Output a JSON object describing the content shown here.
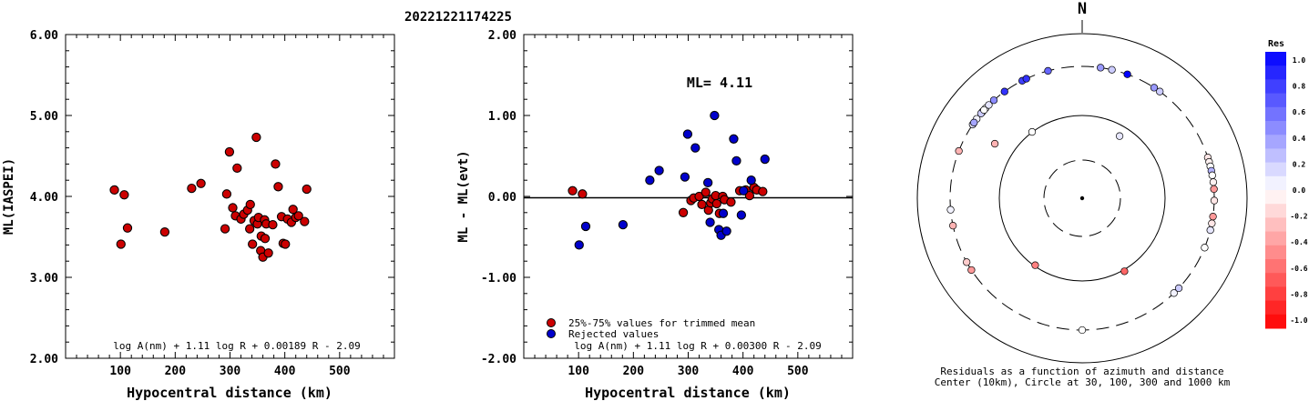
{
  "page_title": "20221221174225",
  "chart_data": [
    {
      "type": "scatter",
      "id": "left",
      "title": "",
      "xlabel": "Hypocentral distance (km)",
      "ylabel": "ML(IASPEI)",
      "xlim": [
        0,
        600
      ],
      "ylim": [
        2.0,
        6.0
      ],
      "xticks": [
        100,
        200,
        300,
        400,
        500
      ],
      "yticks": [
        "2.00",
        "3.00",
        "4.00",
        "5.00",
        "6.00"
      ],
      "formula": "log A(nm) + 1.11 log R + 0.00189 R - 2.09",
      "point_color": "#cc0000",
      "points": [
        [
          89,
          4.08
        ],
        [
          101,
          3.41
        ],
        [
          107,
          4.02
        ],
        [
          113,
          3.61
        ],
        [
          181,
          3.56
        ],
        [
          230,
          4.1
        ],
        [
          247,
          4.16
        ],
        [
          291,
          3.6
        ],
        [
          294,
          4.03
        ],
        [
          299,
          4.55
        ],
        [
          305,
          3.86
        ],
        [
          310,
          3.76
        ],
        [
          313,
          4.35
        ],
        [
          320,
          3.72
        ],
        [
          325,
          3.78
        ],
        [
          332,
          3.83
        ],
        [
          337,
          3.9
        ],
        [
          336,
          3.6
        ],
        [
          341,
          3.41
        ],
        [
          344,
          3.7
        ],
        [
          348,
          4.73
        ],
        [
          350,
          3.66
        ],
        [
          352,
          3.74
        ],
        [
          356,
          3.33
        ],
        [
          357,
          3.51
        ],
        [
          360,
          3.25
        ],
        [
          363,
          3.71
        ],
        [
          364,
          3.48
        ],
        [
          366,
          3.66
        ],
        [
          370,
          3.3
        ],
        [
          378,
          3.65
        ],
        [
          383,
          4.4
        ],
        [
          388,
          4.12
        ],
        [
          394,
          3.75
        ],
        [
          397,
          3.42
        ],
        [
          401,
          3.41
        ],
        [
          405,
          3.72
        ],
        [
          412,
          3.68
        ],
        [
          415,
          3.84
        ],
        [
          420,
          3.74
        ],
        [
          425,
          3.76
        ],
        [
          436,
          3.69
        ],
        [
          440,
          4.09
        ]
      ]
    },
    {
      "type": "scatter",
      "id": "middle",
      "title": "",
      "xlabel": "Hypocentral distance (km)",
      "ylabel": "ML - ML(evt)",
      "xlim": [
        0,
        600
      ],
      "ylim": [
        -2.0,
        2.0
      ],
      "xticks": [
        100,
        200,
        300,
        400,
        500
      ],
      "yticks": [
        "-2.00",
        "-1.00",
        "0.00",
        "1.00",
        "2.00"
      ],
      "reference_line": 0.0,
      "ml_label": "ML= 4.11",
      "legend": {
        "position": "bottom-left",
        "entries": [
          {
            "label": "25%-75% values for trimmed mean",
            "color": "#cc0000"
          },
          {
            "label": "Rejected values",
            "color": "#0000cc"
          }
        ]
      },
      "formula": "log A(nm) + 1.11 log R + 0.00300 R - 2.09",
      "series": [
        {
          "name": "25%-75% values for trimmed mean",
          "color": "#cc0000",
          "points": [
            [
              89,
              0.07
            ],
            [
              107,
              0.03
            ],
            [
              291,
              -0.2
            ],
            [
              305,
              -0.05
            ],
            [
              310,
              -0.02
            ],
            [
              320,
              0.0
            ],
            [
              325,
              -0.1
            ],
            [
              332,
              0.05
            ],
            [
              337,
              -0.17
            ],
            [
              341,
              -0.08
            ],
            [
              344,
              -0.03
            ],
            [
              350,
              0.01
            ],
            [
              352,
              -0.09
            ],
            [
              357,
              -0.21
            ],
            [
              363,
              0.0
            ],
            [
              366,
              -0.04
            ],
            [
              378,
              -0.07
            ],
            [
              394,
              0.07
            ],
            [
              405,
              0.08
            ],
            [
              412,
              0.01
            ],
            [
              420,
              0.11
            ],
            [
              425,
              0.08
            ],
            [
              436,
              0.06
            ]
          ]
        },
        {
          "name": "Rejected values",
          "color": "#0000cc",
          "points": [
            [
              101,
              -0.6
            ],
            [
              113,
              -0.37
            ],
            [
              181,
              -0.35
            ],
            [
              230,
              0.2
            ],
            [
              247,
              0.32
            ],
            [
              294,
              0.24
            ],
            [
              299,
              0.77
            ],
            [
              313,
              0.6
            ],
            [
              336,
              0.17
            ],
            [
              340,
              -0.32
            ],
            [
              348,
              1.0
            ],
            [
              356,
              -0.41
            ],
            [
              360,
              -0.48
            ],
            [
              364,
              -0.21
            ],
            [
              370,
              -0.43
            ],
            [
              383,
              0.71
            ],
            [
              388,
              0.44
            ],
            [
              397,
              -0.23
            ],
            [
              401,
              0.07
            ],
            [
              415,
              0.2
            ],
            [
              440,
              0.46
            ]
          ]
        }
      ]
    },
    {
      "type": "scatter",
      "id": "polar",
      "title": "",
      "north_label": "N",
      "caption_line1": "Residuals as a function of azimuth and distance",
      "caption_line2": "Center (10km), Circle at 30, 100, 300 and 1000 km",
      "rings_km": [
        10,
        30,
        100,
        300,
        1000
      ],
      "colorbar": {
        "label": "Res",
        "ticks": [
          "1.0",
          "0.8",
          "0.6",
          "0.4",
          "0.2",
          "0.0",
          "-0.2",
          "-0.4",
          "-0.6",
          "-0.8",
          "-1.0"
        ],
        "range": [
          -1.0,
          1.0
        ],
        "max_color": "#0000ff",
        "min_color": "#ff0000"
      },
      "points": [
        {
          "az": -56,
          "res": 0.1
        },
        {
          "az": -53,
          "res": 0.05
        },
        {
          "az": -55,
          "res": 0.35
        },
        {
          "az": -47,
          "res": 0.0
        },
        {
          "az": -49,
          "res": 0.5
        },
        {
          "az": -50,
          "res": 0.2
        },
        {
          "az": -48,
          "res": 0.0
        },
        {
          "az": -45,
          "res": 0.1
        },
        {
          "az": -42,
          "res": 0.45
        },
        {
          "az": -36,
          "res": 0.8
        },
        {
          "az": -27,
          "res": 0.75
        },
        {
          "az": -25,
          "res": 0.8
        },
        {
          "az": -15,
          "res": 0.6
        },
        {
          "az": 8,
          "res": 0.4
        },
        {
          "az": 13,
          "res": 0.2
        },
        {
          "az": 20,
          "res": 1.0
        },
        {
          "az": 33,
          "res": 0.4
        },
        {
          "az": 36,
          "res": 0.2
        },
        {
          "az": 72,
          "res": -0.1
        },
        {
          "az": 74,
          "res": -0.05
        },
        {
          "az": 76,
          "res": 0.0
        },
        {
          "az": 78,
          "res": 0.3
        },
        {
          "az": 80,
          "res": 0.0
        },
        {
          "az": 83,
          "res": -0.05
        },
        {
          "az": 86,
          "res": -0.4
        },
        {
          "az": 91,
          "res": -0.1
        },
        {
          "az": 98,
          "res": -0.4
        },
        {
          "az": 101,
          "res": -0.1
        },
        {
          "az": 104,
          "res": 0.1
        },
        {
          "az": 112,
          "res": 0.0
        },
        {
          "az": 133,
          "res": 0.2
        },
        {
          "az": 136,
          "res": 0.05
        },
        {
          "az": 180,
          "res": 0.0
        },
        {
          "az": 237,
          "res": -0.4
        },
        {
          "az": 241,
          "res": -0.2
        },
        {
          "az": 258,
          "res": -0.3
        },
        {
          "az": 265,
          "res": 0.05
        },
        {
          "az": 291,
          "res": -0.3
        },
        {
          "az": 150,
          "res": -0.6,
          "r": 0.64
        },
        {
          "az": 215,
          "res": -0.5,
          "r": 0.62
        },
        {
          "az": -37,
          "res": 0.0,
          "r": 0.63
        },
        {
          "az": 31,
          "res": 0.1,
          "r": 0.55
        },
        {
          "az": 302,
          "res": -0.3,
          "r": 0.78
        }
      ]
    }
  ]
}
